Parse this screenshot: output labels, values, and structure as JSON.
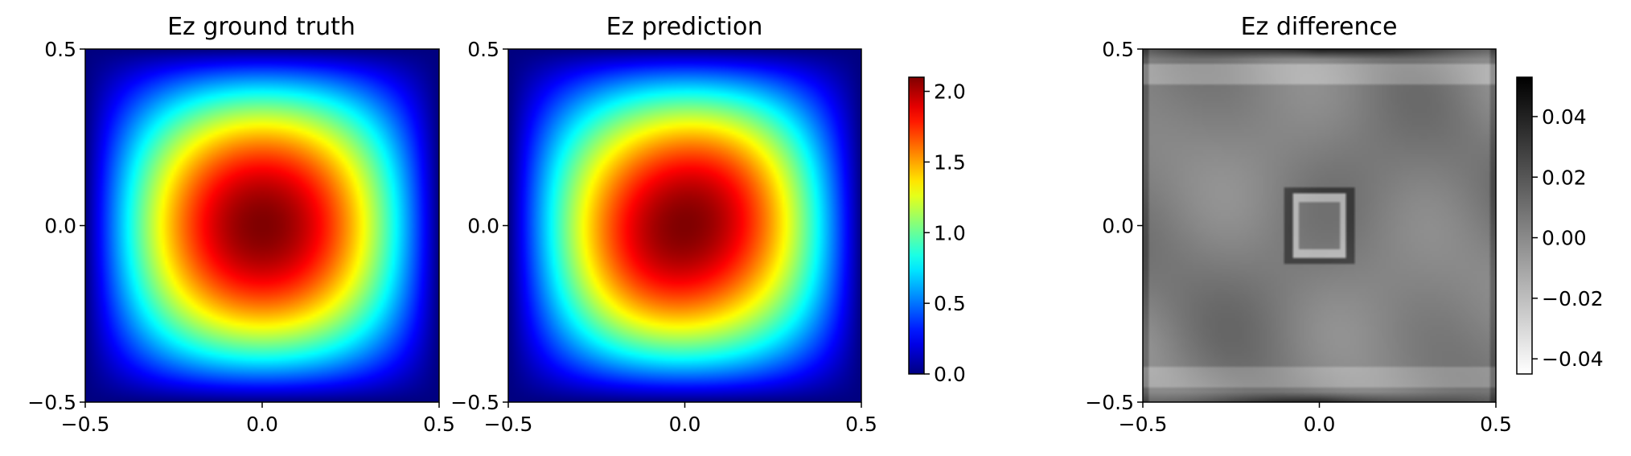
{
  "chart_data": [
    {
      "type": "heatmap",
      "title": "Ez ground truth",
      "field": "ground_truth",
      "xlim": [
        -0.5,
        0.5
      ],
      "ylim": [
        -0.5,
        0.5
      ],
      "xticks": [
        "−0.5",
        "0.0",
        "0.5"
      ],
      "yticks": [
        "−0.5",
        "0.0",
        "0.5"
      ],
      "colormap": "jet",
      "value_range": [
        0.0,
        2.1
      ],
      "peak": {
        "x": 0.0,
        "y": 0.0,
        "value": 2.1
      }
    },
    {
      "type": "heatmap",
      "title": "Ez prediction",
      "field": "prediction",
      "xlim": [
        -0.5,
        0.5
      ],
      "ylim": [
        -0.5,
        0.5
      ],
      "xticks": [
        "−0.5",
        "0.0",
        "0.5"
      ],
      "yticks": [
        "−0.5",
        "0.0",
        "0.5"
      ],
      "colormap": "jet",
      "value_range": [
        0.0,
        2.1
      ],
      "peak": {
        "x": 0.0,
        "y": 0.0,
        "value": 2.1
      },
      "colorbar": {
        "ticks": [
          "0.0",
          "0.5",
          "1.0",
          "1.5",
          "2.0"
        ],
        "tick_values": [
          0.0,
          0.5,
          1.0,
          1.5,
          2.0
        ],
        "min": 0.0,
        "max": 2.1
      }
    },
    {
      "type": "heatmap",
      "title": "Ez difference",
      "field": "difference",
      "xlim": [
        -0.5,
        0.5
      ],
      "ylim": [
        -0.5,
        0.5
      ],
      "xticks": [
        "−0.5",
        "0.0",
        "0.5"
      ],
      "yticks": [
        "−0.5",
        "0.0",
        "0.5"
      ],
      "colormap": "gray_r",
      "value_range": [
        -0.045,
        0.053
      ],
      "square_outline": {
        "x_range": [
          -0.09,
          0.09
        ],
        "y_range": [
          -0.1,
          0.1
        ]
      },
      "colorbar": {
        "ticks": [
          "−0.04",
          "−0.02",
          "0.00",
          "0.02",
          "0.04"
        ],
        "tick_values": [
          -0.04,
          -0.02,
          0.0,
          0.02,
          0.04
        ],
        "min": -0.045,
        "max": 0.053
      }
    }
  ]
}
